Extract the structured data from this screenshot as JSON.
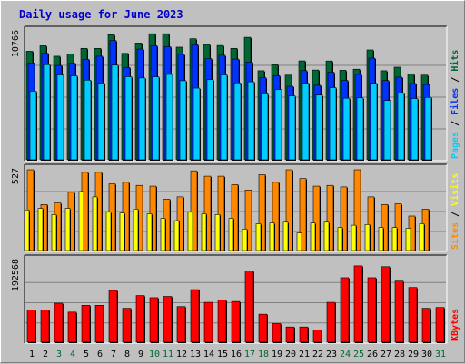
{
  "chart_data": {
    "type": "bar",
    "title": "Daily usage for June 2023",
    "days": [
      "1",
      "2",
      "3",
      "4",
      "5",
      "6",
      "7",
      "8",
      "9",
      "10",
      "11",
      "12",
      "13",
      "14",
      "15",
      "16",
      "17",
      "18",
      "19",
      "20",
      "21",
      "22",
      "23",
      "24",
      "25",
      "26",
      "27",
      "28",
      "29",
      "30",
      "31"
    ],
    "weekend_days": [
      "3",
      "4",
      "10",
      "11",
      "17",
      "18",
      "24",
      "25",
      "31"
    ],
    "colors": {
      "hits": "#006633",
      "files": "#0033ff",
      "pages": "#00ccff",
      "visits": "#ffff00",
      "sites": "#ff8800",
      "kbytes": "#ff0000",
      "weekday_label": "#000000",
      "weekend_label": "#006633"
    },
    "panels": [
      {
        "name": "usage",
        "ymax_label": "10766",
        "ymax": 10766,
        "right_labels": [
          {
            "text": "Pages",
            "color": "#00ccff"
          },
          {
            "text": "Files",
            "color": "#0033ff"
          },
          {
            "text": "Hits",
            "color": "#006633"
          }
        ],
        "series": [
          {
            "name": "Hits",
            "values": [
              9130,
              9590,
              8710,
              8880,
              9370,
              9370,
              10520,
              8950,
              9820,
              10600,
              10600,
              9470,
              10180,
              9690,
              9610,
              9370,
              10300,
              7490,
              7990,
              7120,
              8320,
              7550,
              8310,
              7530,
              7620,
              9240,
              7490,
              7790,
              7200,
              7120,
              0
            ]
          },
          {
            "name": "Files",
            "values": [
              8140,
              8950,
              7930,
              8120,
              8450,
              8710,
              10030,
              7770,
              9310,
              9590,
              9510,
              8870,
              9670,
              8510,
              8790,
              8470,
              8220,
              6910,
              7080,
              6180,
              7500,
              6270,
              7370,
              6680,
              7180,
              8550,
              6670,
              6950,
              6420,
              6330,
              0
            ]
          },
          {
            "name": "Pages",
            "values": [
              5770,
              8000,
              7140,
              7060,
              6700,
              6450,
              7960,
              6990,
              6880,
              6980,
              7180,
              6650,
              6030,
              6740,
              7140,
              6470,
              6560,
              5540,
              5910,
              5380,
              6450,
              5440,
              6070,
              5180,
              5210,
              6430,
              4990,
              5600,
              5150,
              5250,
              0
            ]
          }
        ]
      },
      {
        "name": "visitors",
        "ymax_label": "527",
        "ymax": 527,
        "right_labels": [
          {
            "text": "Sites",
            "color": "#ff8800"
          },
          {
            "text": "Visits",
            "color": "#ffff00"
          }
        ],
        "series": [
          {
            "name": "Sites",
            "values": [
              527,
              300,
              310,
              380,
              510,
              510,
              435,
              445,
              425,
              420,
              335,
              350,
              520,
              485,
              485,
              430,
              395,
              495,
              445,
              527,
              470,
              420,
              425,
              415,
              527,
              350,
              300,
              305,
              225,
              270,
              0
            ]
          },
          {
            "name": "Visits",
            "values": [
              265,
              275,
              235,
              275,
              385,
              350,
              250,
              245,
              270,
              240,
              210,
              195,
              250,
              240,
              235,
              210,
              140,
              175,
              180,
              185,
              115,
              180,
              185,
              150,
              165,
              170,
              150,
              150,
              145,
              175,
              0
            ]
          }
        ]
      },
      {
        "name": "kbytes",
        "ymax_label": "192568",
        "ymax": 192568,
        "right_labels": [
          {
            "text": "KBytes",
            "color": "#ff0000"
          }
        ],
        "series": [
          {
            "name": "KBytes",
            "values": [
              76000,
              76000,
              92000,
              71000,
              87000,
              87000,
              122000,
              80000,
              110000,
              105000,
              108000,
              84000,
              124000,
              94000,
              99000,
              96000,
              168000,
              66000,
              44000,
              36000,
              36000,
              29000,
              94000,
              152000,
              180000,
              152000,
              178000,
              144000,
              129000,
              80000,
              82000
            ]
          }
        ]
      }
    ]
  }
}
